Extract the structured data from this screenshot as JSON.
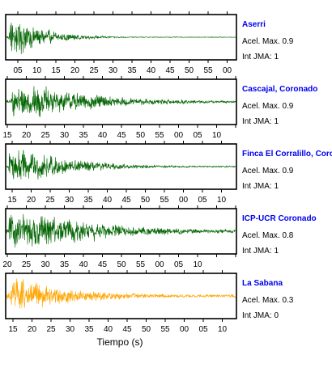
{
  "chart_data": {
    "type": "line",
    "xlabel": "Tiempo (s)",
    "panels": [
      {
        "station": "Aserri",
        "acel_text": "Acel. Max. 0.9",
        "jma_text": "Int JMA: 1",
        "color": "#006400",
        "tick_labels": [
          "05",
          "10",
          "15",
          "20",
          "25",
          "30",
          "35",
          "40",
          "45",
          "50",
          "55",
          "00"
        ],
        "tick_labels_visible": true
      },
      {
        "station": "Cascajal, Coronado",
        "acel_text": "Acel. Max. 0.9",
        "jma_text": "Int JMA: 1",
        "color": "#006400",
        "tick_labels": [
          "15",
          "20",
          "25",
          "30",
          "35",
          "40",
          "45",
          "50",
          "55",
          "00",
          "05",
          "10"
        ],
        "tick_labels_visible": true
      },
      {
        "station": "Finca El Corralillo, Coronado",
        "acel_text": "Acel. Max. 0.9",
        "jma_text": "Int JMA: 1",
        "color": "#006400",
        "tick_labels": [
          "15",
          "20",
          "25",
          "30",
          "35",
          "40",
          "45",
          "50",
          "55",
          "00",
          "05",
          "10"
        ],
        "tick_labels_visible": true
      },
      {
        "station": "ICP-UCR Coronado",
        "acel_text": "Acel. Max. 0.8",
        "jma_text": "Int JMA: 1",
        "color": "#006400",
        "tick_labels": [
          "20",
          "25",
          "30",
          "35",
          "40",
          "45",
          "50",
          "55",
          "00",
          "05",
          "10"
        ],
        "tick_labels_visible": true
      },
      {
        "station": "La Sabana",
        "acel_text": "Acel. Max. 0.3",
        "jma_text": "Int JMA: 0",
        "color": "#ffa500",
        "tick_labels": [
          "15",
          "20",
          "25",
          "30",
          "35",
          "40",
          "45",
          "50",
          "55",
          "00",
          "05",
          "10"
        ],
        "tick_labels_visible": true
      }
    ]
  }
}
